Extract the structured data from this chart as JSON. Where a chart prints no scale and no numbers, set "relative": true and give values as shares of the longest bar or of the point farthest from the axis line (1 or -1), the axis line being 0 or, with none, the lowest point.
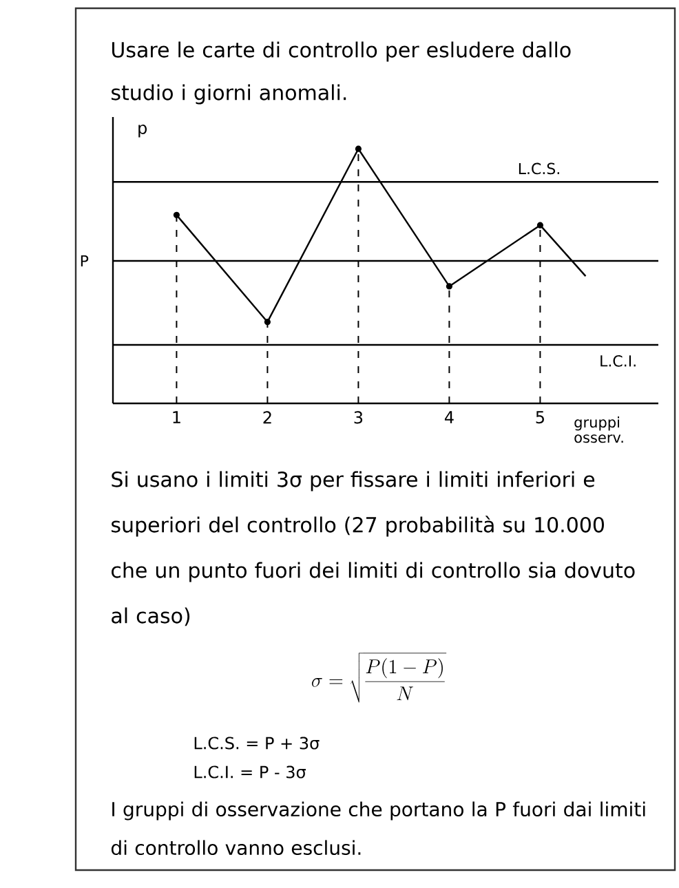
{
  "chart_data": {
    "type": "line",
    "title": "Usare le carte di controllo per esludere dallo studio i giorni anomali.",
    "xlabel": "gruppi osserv.",
    "ylabel": "p",
    "relative": true,
    "xlim": [
      0.3,
      6.3
    ],
    "xticks": [
      1,
      2,
      3,
      4,
      5
    ],
    "series": [
      {
        "color": "#000000",
        "x": [
          1,
          2,
          3,
          4,
          5,
          5.5
        ],
        "values": [
          0.74,
          0.32,
          1,
          0.46,
          0.7,
          0.5
        ]
      },
      {
        "type": "lollipop",
        "color": "#000000",
        "line_style": "dashed",
        "marker": "circle",
        "x": [
          1,
          2,
          3,
          4,
          5
        ],
        "values": [
          0.74,
          0.32,
          1,
          0.46,
          0.7
        ]
      }
    ],
    "ref_lines": [
      {
        "axis": "y",
        "value": 0.87,
        "label": "L.C.S."
      },
      {
        "axis": "y",
        "value": 0.56,
        "label": "P"
      },
      {
        "axis": "y",
        "value": 0.23,
        "label": "L.C.I."
      }
    ],
    "annotations": [
      "Si usano i limiti 3σ per fissare i limiti inferiori e superiori del controllo (27 probabilità su 10.000 che un punto fuori dei limiti di controllo sia dovuto al caso)",
      "\\sigma = \\sqrt{\\frac{P(1 - P)}{N}}",
      "L.C.S. = P + 3σ",
      "L.C.I. = P - 3σ",
      "I gruppi di osservazione che portano la P fuori dai limiti di controllo vanno esclusi."
    ]
  }
}
